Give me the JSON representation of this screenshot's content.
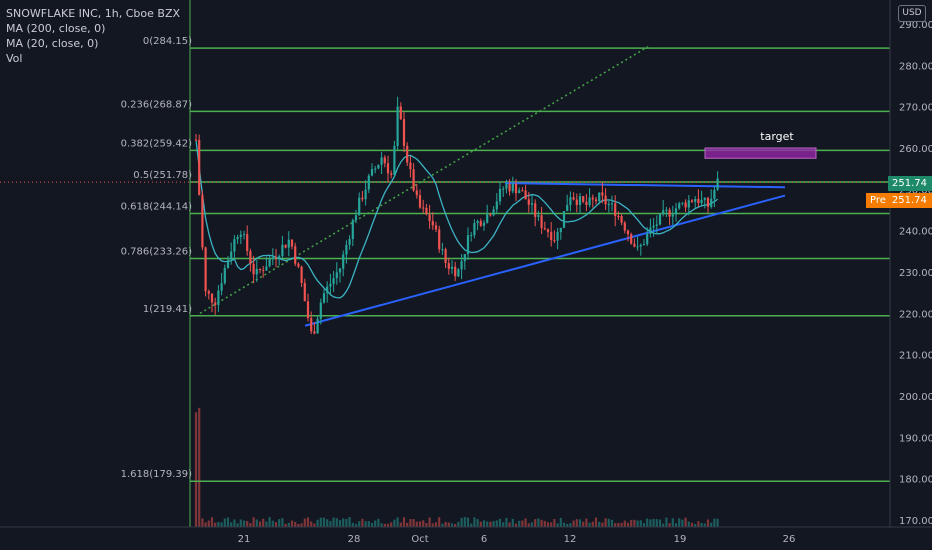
{
  "legend": {
    "title": "SNOWFLAKE INC, 1h, Cboe BZX",
    "ma200": "MA (200, close, 0)",
    "ma20": "MA (20, close, 0)",
    "vol": "Vol"
  },
  "currency": "USD",
  "last_price": "251.74",
  "pre_tag": "Pre",
  "pre_price": "251.74",
  "colors": {
    "background": "#131722",
    "fib_line": "#4caf50",
    "trendline": "#2962ff",
    "dotted": "#43a047",
    "up": "#26a69a",
    "down": "#ef5350",
    "ma": "#3bb3c3",
    "target_box": "#9c27b0"
  },
  "chart_data": {
    "type": "candlestick",
    "symbol": "SNOWFLAKE INC",
    "interval": "1h",
    "exchange": "Cboe BZX",
    "ylim": [
      170,
      290
    ],
    "y_ticks": [
      170,
      180,
      190,
      200,
      210,
      220,
      230,
      240,
      250,
      260,
      270,
      280,
      290
    ],
    "x_ticks": [
      "21",
      "28",
      "Oct",
      "6",
      "12",
      "19",
      "26"
    ],
    "fib_levels": [
      {
        "label": "0(284.15)",
        "value": 284.15
      },
      {
        "label": "0.236(268.87)",
        "value": 268.87
      },
      {
        "label": "0.382(259.42)",
        "value": 259.42
      },
      {
        "label": "0.5(251.78)",
        "value": 251.78
      },
      {
        "label": "0.618(244.14)",
        "value": 244.14
      },
      {
        "label": "0.786(233.26)",
        "value": 233.26
      },
      {
        "label": "1(219.41)",
        "value": 219.41
      },
      {
        "label": "1.618(179.39)",
        "value": 179.39
      }
    ],
    "annotations": [
      {
        "text": "target",
        "price_range": [
          258,
          260
        ]
      }
    ],
    "trendlines": [
      {
        "name": "support",
        "from": [
          "Sep 25",
          217
        ],
        "to": [
          "Oct 26",
          248.5
        ]
      },
      {
        "name": "resistance",
        "from": [
          "Oct 8",
          251.5
        ],
        "to": [
          "Oct 26",
          250.5
        ]
      },
      {
        "name": "dotted",
        "from": [
          "Sep 17",
          220
        ],
        "to": [
          "Oct 15",
          284.5
        ]
      }
    ],
    "last_price": 251.74
  }
}
